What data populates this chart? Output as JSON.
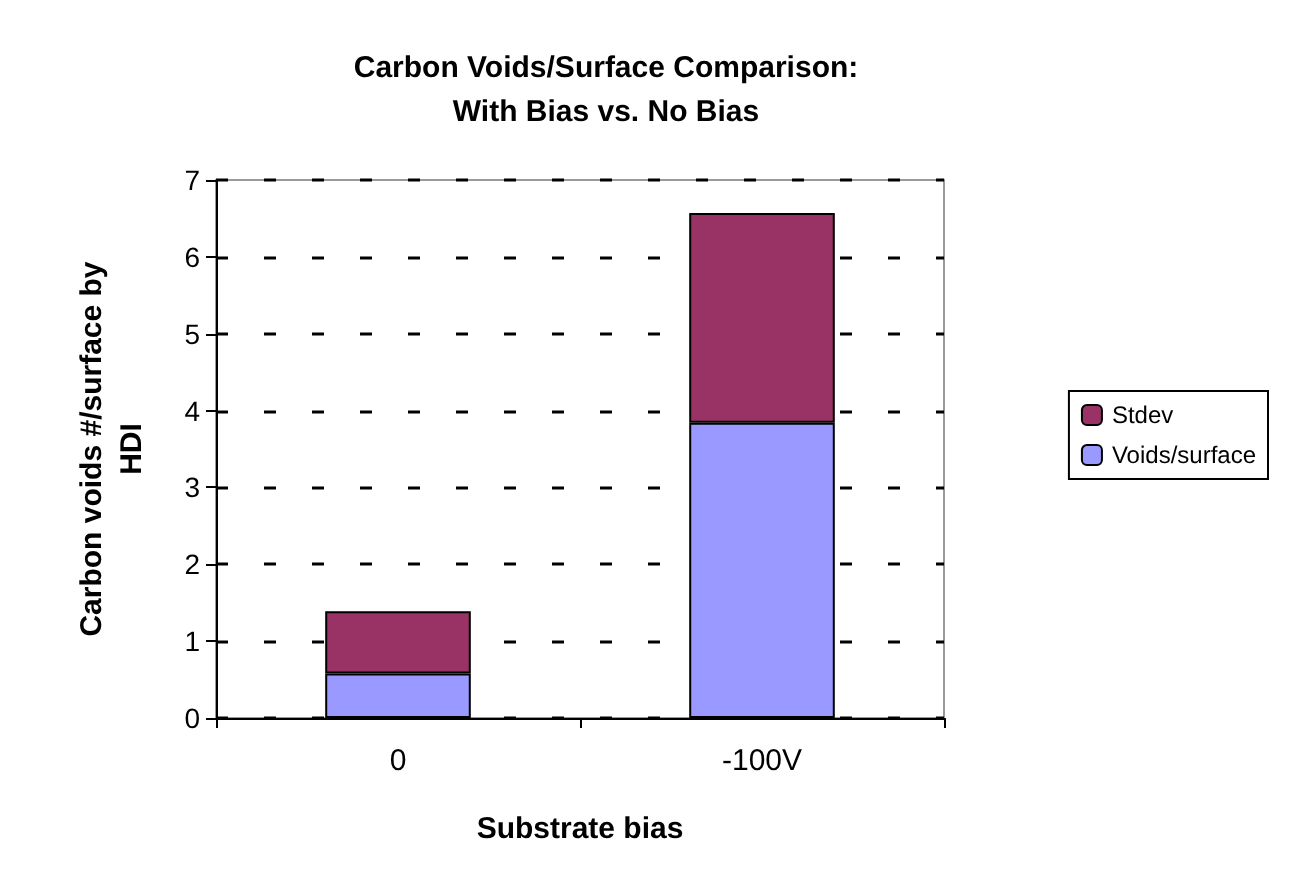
{
  "chart_data": {
    "type": "bar",
    "title": "Carbon Voids/Surface Comparison:\nWith Bias vs. No Bias",
    "xlabel": "Substrate bias",
    "ylabel": "Carbon voids #/surface by\nHDI",
    "categories": [
      "0",
      "-100V"
    ],
    "stacked": true,
    "series": [
      {
        "name": "Voids/surface",
        "color": "#9999ff",
        "values": [
          0.58,
          3.84
        ]
      },
      {
        "name": "Stdev",
        "color": "#993366",
        "values": [
          0.81,
          2.73
        ]
      }
    ],
    "ylim": [
      0,
      7
    ],
    "yticks": [
      0,
      1,
      2,
      3,
      4,
      5,
      6,
      7
    ],
    "grid": "y",
    "legend": "right"
  }
}
